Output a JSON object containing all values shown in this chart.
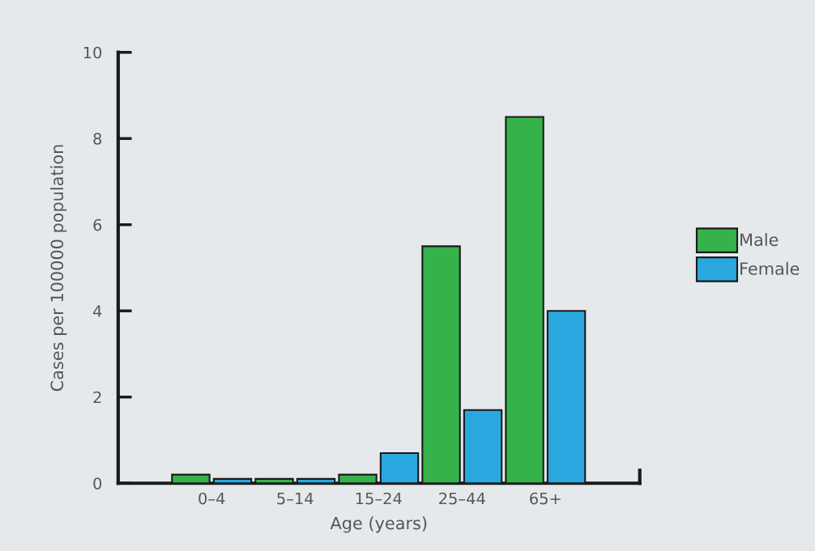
{
  "chart_data": {
    "type": "bar",
    "xlabel": "Age (years)",
    "ylabel": "Cases per 100000 population",
    "categories": [
      "0–4",
      "5–14",
      "15–24",
      "25–44",
      "65+"
    ],
    "series": [
      {
        "name": "Male",
        "color": "#35b34a",
        "values": [
          0.2,
          0.1,
          0.2,
          5.5,
          8.5
        ]
      },
      {
        "name": "Female",
        "color": "#29a8e0",
        "values": [
          0.1,
          0.1,
          0.7,
          1.7,
          4.0
        ]
      }
    ],
    "ylim": [
      0,
      10
    ],
    "yticks": [
      0,
      2,
      4,
      6,
      8,
      10
    ],
    "grid": false,
    "legend": "right"
  }
}
